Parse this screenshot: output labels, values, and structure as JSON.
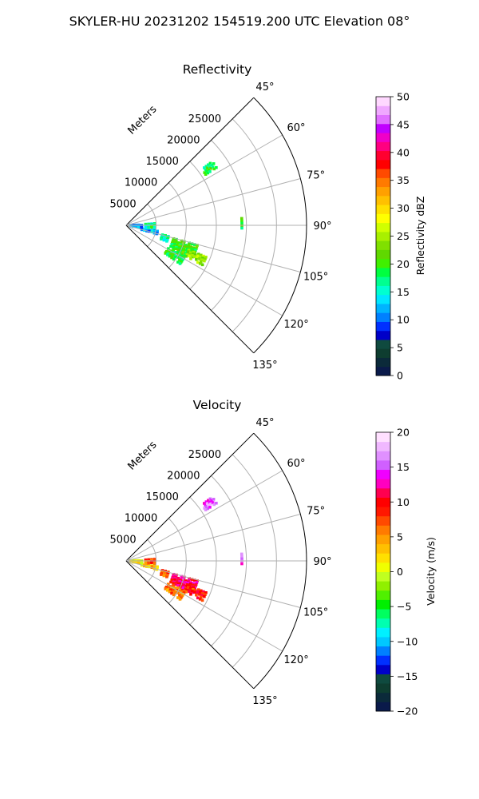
{
  "figure": {
    "title": "SKYLER-HU  20231202  154519.200 UTC Elevation 08°"
  },
  "chart_data": [
    {
      "type": "heatmap",
      "projection": "polar-sector",
      "title": "Reflectivity",
      "radial_axis_label": "Meters",
      "radial_ticks": [
        "5000",
        "10000",
        "15000",
        "20000",
        "25000"
      ],
      "radial_tick_values": [
        5000,
        10000,
        15000,
        20000,
        25000
      ],
      "rlim": [
        0,
        30000
      ],
      "angle_ticks": [
        "45°",
        "60°",
        "75°",
        "90°",
        "105°",
        "120°",
        "135°"
      ],
      "angle_tick_values": [
        45,
        60,
        75,
        90,
        105,
        120,
        135
      ],
      "thetalim": [
        45,
        135
      ],
      "grid": true,
      "colorbar": {
        "label": "Reflectivity dBZ",
        "min": 0,
        "max": 50,
        "ticks": [
          "0",
          "5",
          "10",
          "15",
          "20",
          "25",
          "30",
          "35",
          "40",
          "45",
          "50"
        ],
        "tick_values": [
          0,
          5,
          10,
          15,
          20,
          25,
          30,
          35,
          40,
          45,
          50
        ],
        "colors": [
          "#0a1a4a",
          "#0b2a3a",
          "#0e3d30",
          "#0f4a3f",
          "#0000c8",
          "#0030ff",
          "#0080ff",
          "#00b4ff",
          "#00e6ff",
          "#00ffd0",
          "#00ff90",
          "#00ff40",
          "#40f000",
          "#60d800",
          "#80e000",
          "#a8f000",
          "#d0ff00",
          "#ffff00",
          "#ffe000",
          "#ffc000",
          "#ffa000",
          "#ff7a00",
          "#ff4a00",
          "#ff0000",
          "#ff0030",
          "#ff0080",
          "#f000c8",
          "#c000ff",
          "#e070ff",
          "#f0a8ff",
          "#ffd8ff"
        ]
      },
      "echoes": [
        {
          "r0": 8000,
          "r1": 12500,
          "a0": 105,
          "a1": 116,
          "value": 20
        },
        {
          "r0": 11000,
          "r1": 14500,
          "a0": 111,
          "a1": 118,
          "value": 24
        },
        {
          "r0": 7800,
          "r1": 11200,
          "a0": 117,
          "a1": 126,
          "value": 19
        },
        {
          "r0": 6000,
          "r1": 7500,
          "a0": 104,
          "a1": 112,
          "value": 16
        },
        {
          "r0": 2500,
          "r1": 5500,
          "a0": 100,
          "a1": 106,
          "value": 12
        },
        {
          "r0": 15500,
          "r1": 18000,
          "a0": 53,
          "a1": 58,
          "value": 18
        },
        {
          "r0": 19000,
          "r1": 19500,
          "a0": 86,
          "a1": 92,
          "value": 19
        },
        {
          "r0": 500,
          "r1": 2800,
          "a0": 88,
          "a1": 100,
          "value": 11
        },
        {
          "r0": 3000,
          "r1": 5000,
          "a0": 86,
          "a1": 96,
          "value": 17
        }
      ]
    },
    {
      "type": "heatmap",
      "projection": "polar-sector",
      "title": "Velocity",
      "radial_axis_label": "Meters",
      "radial_ticks": [
        "5000",
        "10000",
        "15000",
        "20000",
        "25000"
      ],
      "radial_tick_values": [
        5000,
        10000,
        15000,
        20000,
        25000
      ],
      "rlim": [
        0,
        30000
      ],
      "angle_ticks": [
        "45°",
        "60°",
        "75°",
        "90°",
        "105°",
        "120°",
        "135°"
      ],
      "angle_tick_values": [
        45,
        60,
        75,
        90,
        105,
        120,
        135
      ],
      "thetalim": [
        45,
        135
      ],
      "grid": true,
      "colorbar": {
        "label": "Velocity (m/s)",
        "min": -20,
        "max": 20,
        "ticks": [
          "−20",
          "−15",
          "−10",
          "−5",
          "0",
          "5",
          "10",
          "15",
          "20"
        ],
        "tick_values": [
          -20,
          -15,
          -10,
          -5,
          0,
          5,
          10,
          15,
          20
        ],
        "colors": [
          "#0a1a4a",
          "#0b2a3a",
          "#0e3d30",
          "#0f4a3f",
          "#0000c8",
          "#0030ff",
          "#0080ff",
          "#00c8ff",
          "#00f0ff",
          "#00ffb0",
          "#00ff60",
          "#00f000",
          "#50f000",
          "#90f000",
          "#c0ff20",
          "#f0ff00",
          "#ffe000",
          "#ffc000",
          "#ffa000",
          "#ff7a00",
          "#ff4a00",
          "#ff1800",
          "#ff0000",
          "#ff0050",
          "#ff00c0",
          "#f000ff",
          "#d060ff",
          "#e090ff",
          "#f0b8ff",
          "#ffe0ff"
        ]
      },
      "echoes": [
        {
          "r0": 8000,
          "r1": 12500,
          "a0": 105,
          "a1": 116,
          "value": 11
        },
        {
          "r0": 11000,
          "r1": 14500,
          "a0": 111,
          "a1": 118,
          "value": 9
        },
        {
          "r0": 7800,
          "r1": 11200,
          "a0": 117,
          "a1": 126,
          "value": 6
        },
        {
          "r0": 6000,
          "r1": 7500,
          "a0": 104,
          "a1": 112,
          "value": 7
        },
        {
          "r0": 2500,
          "r1": 5500,
          "a0": 100,
          "a1": 106,
          "value": 3
        },
        {
          "r0": 15500,
          "r1": 18000,
          "a0": 53,
          "a1": 58,
          "value": 15
        },
        {
          "r0": 19000,
          "r1": 19500,
          "a0": 86,
          "a1": 92,
          "value": 15
        },
        {
          "r0": 500,
          "r1": 2800,
          "a0": 88,
          "a1": 100,
          "value": 1
        },
        {
          "r0": 3000,
          "r1": 5000,
          "a0": 86,
          "a1": 96,
          "value": 8
        }
      ]
    }
  ]
}
